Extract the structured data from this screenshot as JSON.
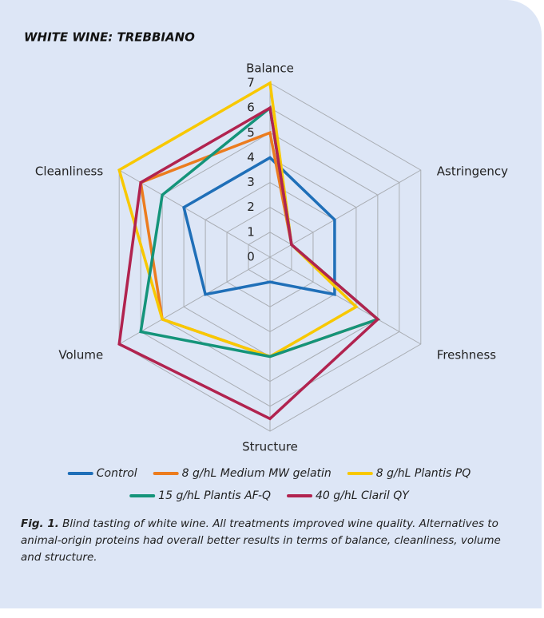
{
  "chart_data": {
    "type": "radar",
    "title": "WHITE WINE: TREBBIANO",
    "categories": [
      "Balance",
      "Astringency",
      "Freshness",
      "Structure",
      "Volume",
      "Cleanliness"
    ],
    "rlim": [
      0,
      7
    ],
    "rticks": [
      0,
      1,
      2,
      3,
      4,
      5,
      6,
      7
    ],
    "grid": true,
    "series": [
      {
        "name": "Control",
        "color": "#1f6fb8",
        "values": [
          4,
          3,
          3,
          1,
          3,
          4
        ]
      },
      {
        "name": "8 g/hL Medium MW gelatin",
        "color": "#ec7c1e",
        "values": [
          5,
          1,
          5,
          4,
          5,
          6
        ]
      },
      {
        "name": "8 g/hL Plantis PQ",
        "color": "#f8c800",
        "values": [
          7,
          1,
          4,
          4,
          5,
          7
        ]
      },
      {
        "name": "15 g/hL Plantis AF-Q",
        "color": "#14947a",
        "values": [
          6,
          1,
          5,
          4,
          6,
          5
        ]
      },
      {
        "name": "40 g/hL Claril QY",
        "color": "#b1234f",
        "values": [
          6,
          1,
          5,
          6.5,
          7,
          6
        ]
      }
    ],
    "caption_label": "Fig. 1.",
    "caption": "Blind tasting of white wine. All treatments improved wine quality. Alternatives to animal-origin proteins had overall better results in terms of balance, cleanliness, volume and structure."
  }
}
